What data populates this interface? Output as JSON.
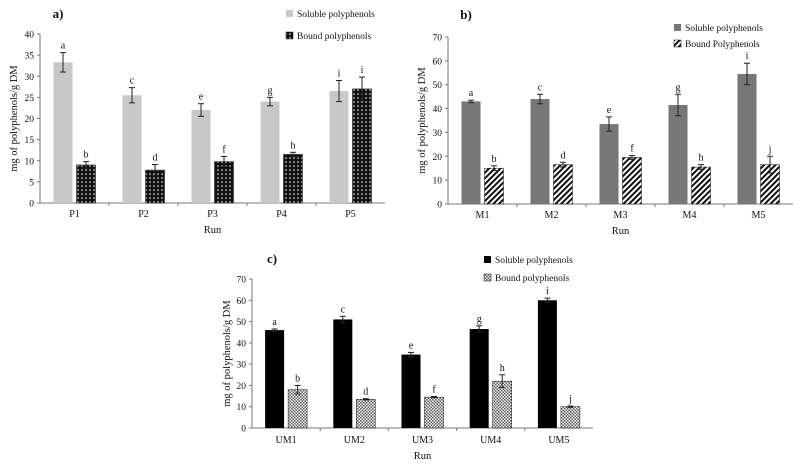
{
  "chart_data": [
    {
      "type": "bar",
      "panel": "a)",
      "categories": [
        "P1",
        "P2",
        "P3",
        "P4",
        "P5"
      ],
      "xlabel": "Run",
      "ylabel": "mg of polyphenols/g DM",
      "ylim": [
        0,
        40
      ],
      "yticks": [
        0,
        5,
        10,
        15,
        20,
        25,
        30,
        35,
        40
      ],
      "legend_position": "top-right",
      "series": [
        {
          "name": "Soluble polyphenols",
          "color": "#c8c8c8",
          "pattern": "solid",
          "values": [
            33.3,
            25.5,
            22.0,
            24.0,
            26.5
          ],
          "errors": [
            2.3,
            1.8,
            1.5,
            1.0,
            2.5
          ],
          "labels": [
            "a",
            "c",
            "e",
            "g",
            "i"
          ]
        },
        {
          "name": "Bound polyphenols",
          "color": "#111111",
          "pattern": "dots",
          "values": [
            9.0,
            7.8,
            9.8,
            11.5,
            27.0
          ],
          "errors": [
            0.8,
            1.3,
            1.2,
            0.5,
            2.8
          ],
          "labels": [
            "b",
            "d",
            "f",
            "h",
            "i"
          ]
        }
      ]
    },
    {
      "type": "bar",
      "panel": "b)",
      "categories": [
        "M1",
        "M2",
        "M3",
        "M4",
        "M5"
      ],
      "xlabel": "Run",
      "ylabel": "mg of polyphenols/g DM",
      "ylim": [
        0,
        70
      ],
      "yticks": [
        0,
        10,
        20,
        30,
        40,
        50,
        60,
        70
      ],
      "legend_position": "top-right",
      "series": [
        {
          "name": "Soluble polyphenols",
          "color": "#777777",
          "pattern": "solid",
          "values": [
            43.0,
            44.0,
            33.5,
            41.5,
            54.5
          ],
          "errors": [
            0.5,
            2.0,
            3.0,
            4.5,
            4.5
          ],
          "labels": [
            "a",
            "c",
            "e",
            "g",
            "i"
          ]
        },
        {
          "name": "Bound Polyphenols",
          "color": "#111111",
          "pattern": "stripes",
          "values": [
            15.0,
            16.5,
            19.5,
            15.5,
            16.5
          ],
          "errors": [
            1.0,
            1.0,
            0.8,
            1.0,
            3.5
          ],
          "labels": [
            "b",
            "d",
            "f",
            "h",
            "j"
          ]
        }
      ]
    },
    {
      "type": "bar",
      "panel": "c)",
      "categories": [
        "UM1",
        "UM2",
        "UM3",
        "UM4",
        "UM5"
      ],
      "xlabel": "Run",
      "ylabel": "mg of polyphenols/g DM",
      "ylim": [
        0,
        70
      ],
      "yticks": [
        0,
        10,
        20,
        30,
        40,
        50,
        60,
        70
      ],
      "legend_position": "top-right",
      "series": [
        {
          "name": "Soluble polyphenols",
          "color": "#000000",
          "pattern": "solid",
          "values": [
            46.0,
            51.0,
            34.5,
            46.5,
            60.0
          ],
          "errors": [
            0.5,
            1.5,
            1.0,
            1.5,
            1.0
          ],
          "labels": [
            "a",
            "c",
            "e",
            "g",
            "i"
          ]
        },
        {
          "name": "Bound polyphenols",
          "color": "#333333",
          "pattern": "checker",
          "values": [
            18.0,
            13.5,
            14.5,
            22.0,
            10.0
          ],
          "errors": [
            2.0,
            0.3,
            0.3,
            3.0,
            0.3
          ],
          "labels": [
            "b",
            "d",
            "f",
            "h",
            "j"
          ]
        }
      ]
    }
  ]
}
